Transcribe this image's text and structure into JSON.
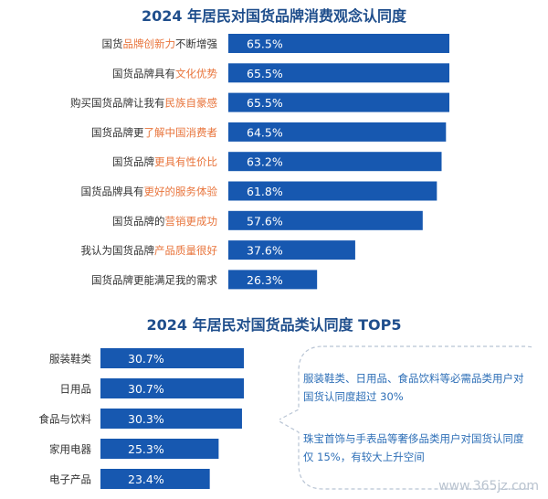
{
  "chart_data": [
    {
      "type": "bar",
      "orientation": "horizontal",
      "title": "2024 年居民对国货品牌消费观念认同度",
      "categories": [
        "国货品牌创新力不断增强",
        "国货品牌具有文化优势",
        "购买国货品牌让我有民族自豪感",
        "国货品牌更了解中国消费者",
        "国货品牌更具有性价比",
        "国货品牌具有更好的服务体验",
        "国货品牌的营销更成功",
        "我认为国货品牌产品质量很好",
        "国货品牌更能满足我的需求"
      ],
      "label_segments": [
        [
          [
            "国货",
            false
          ],
          [
            "品牌创新力",
            true
          ],
          [
            "不断增强",
            false
          ]
        ],
        [
          [
            "国货品牌具有",
            false
          ],
          [
            "文化优势",
            true
          ]
        ],
        [
          [
            "购买国货品牌让我有",
            false
          ],
          [
            "民族自豪感",
            true
          ]
        ],
        [
          [
            "国货品牌更",
            false
          ],
          [
            "了解中国消费者",
            true
          ]
        ],
        [
          [
            "国货品牌",
            false
          ],
          [
            "更具有性价比",
            true
          ]
        ],
        [
          [
            "国货品牌具有",
            false
          ],
          [
            "更好的服务体验",
            true
          ]
        ],
        [
          [
            "国货品牌的",
            false
          ],
          [
            "营销更成功",
            true
          ]
        ],
        [
          [
            "我认为国货品牌",
            false
          ],
          [
            "产品质量很好",
            true
          ]
        ],
        [
          [
            "国货品牌更能满足我的需求",
            false
          ]
        ]
      ],
      "values": [
        65.5,
        65.5,
        65.5,
        64.5,
        63.2,
        61.8,
        57.6,
        37.6,
        26.3
      ],
      "value_labels": [
        "65.5%",
        "65.5%",
        "65.5%",
        "64.5%",
        "63.2%",
        "61.8%",
        "57.6%",
        "37.6%",
        "26.3%"
      ],
      "unit": "%"
    },
    {
      "type": "bar",
      "orientation": "horizontal",
      "title": "2024 年居民对国货品类认同度 TOP5",
      "categories": [
        "服装鞋类",
        "日用品",
        "食品与饮料",
        "家用电器",
        "电子产品"
      ],
      "values": [
        30.7,
        30.7,
        30.3,
        25.3,
        23.4
      ],
      "value_labels": [
        "30.7%",
        "30.7%",
        "30.3%",
        "25.3%",
        "23.4%"
      ],
      "unit": "%"
    }
  ],
  "note": {
    "paragraph1": "服装鞋类、日用品、食品饮料等必需品类用户对国货认同度超过 30%",
    "paragraph2": "珠宝首饰与手表品等奢侈品类用户对国货认同度仅 15%，有较大上升空间"
  },
  "watermark": "www.365jz.com",
  "colors": {
    "bar": "#1758b0",
    "title": "#1f4e8c",
    "label": "#333333",
    "highlight": "#e8743b",
    "note_text": "#2e6fb7",
    "note_border": "#b8c4d4"
  }
}
